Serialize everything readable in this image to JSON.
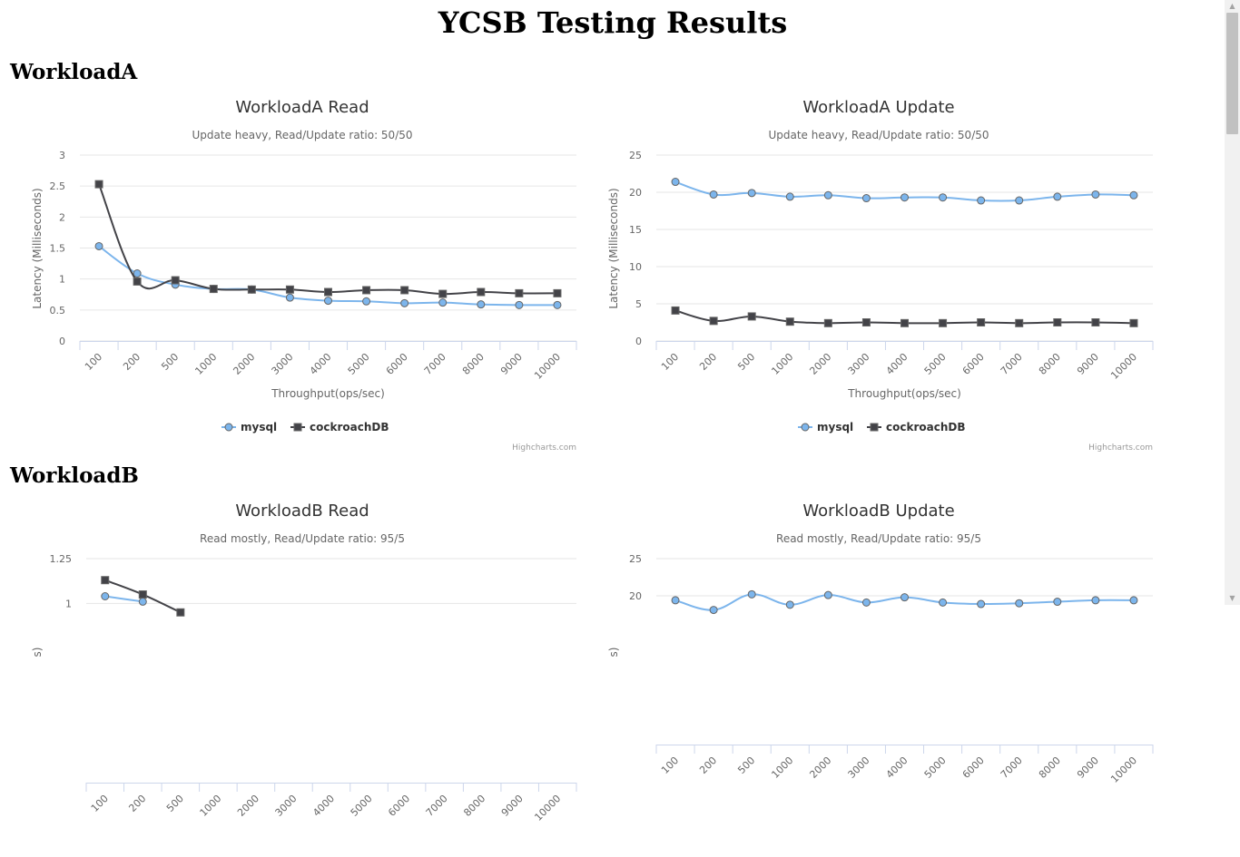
{
  "page": {
    "title": "YCSB Testing Results"
  },
  "sections": [
    {
      "heading": "WorkloadA"
    },
    {
      "heading": "WorkloadB"
    }
  ],
  "colors": {
    "mysql": "#7cb5ec",
    "cockroachDB": "#434348",
    "grid": "#e6e6e6",
    "axis_line": "#ccd6eb",
    "text": "#666666",
    "title": "#333333"
  },
  "chart_data": [
    {
      "type": "line",
      "title": "WorkloadA Read",
      "subtitle": "Update heavy, Read/Update ratio: 50/50",
      "xlabel": "Throughput(ops/sec)",
      "ylabel": "Latency (Milliseconds)",
      "categories": [
        "100",
        "200",
        "500",
        "1000",
        "2000",
        "3000",
        "4000",
        "5000",
        "6000",
        "7000",
        "8000",
        "9000",
        "10000"
      ],
      "yticks": [
        "0",
        "0.5",
        "1",
        "1.5",
        "2",
        "2.5",
        "3"
      ],
      "ylim": [
        0,
        3
      ],
      "grid": true,
      "legend_position": "bottom-center",
      "credits": "Highcharts.com",
      "series": [
        {
          "name": "mysql",
          "marker": "circle",
          "values": [
            1.53,
            1.09,
            0.91,
            0.84,
            0.83,
            0.7,
            0.65,
            0.64,
            0.61,
            0.62,
            0.59,
            0.58,
            0.58
          ]
        },
        {
          "name": "cockroachDB",
          "marker": "square",
          "values": [
            2.53,
            0.96,
            0.98,
            0.84,
            0.83,
            0.83,
            0.79,
            0.82,
            0.82,
            0.76,
            0.79,
            0.77,
            0.77
          ]
        }
      ]
    },
    {
      "type": "line",
      "title": "WorkloadA Update",
      "subtitle": "Update heavy, Read/Update ratio: 50/50",
      "xlabel": "Throughput(ops/sec)",
      "ylabel": "Latency (Milliseconds)",
      "categories": [
        "100",
        "200",
        "500",
        "1000",
        "2000",
        "3000",
        "4000",
        "5000",
        "6000",
        "7000",
        "8000",
        "9000",
        "10000"
      ],
      "yticks": [
        "0",
        "5",
        "10",
        "15",
        "20",
        "25"
      ],
      "ylim": [
        0,
        25
      ],
      "grid": true,
      "legend_position": "bottom-center",
      "credits": "Highcharts.com",
      "series": [
        {
          "name": "mysql",
          "marker": "circle",
          "values": [
            21.4,
            19.7,
            19.9,
            19.4,
            19.6,
            19.2,
            19.3,
            19.3,
            18.9,
            18.9,
            19.4,
            19.7,
            19.6
          ]
        },
        {
          "name": "cockroachDB",
          "marker": "square",
          "values": [
            4.1,
            2.7,
            3.3,
            2.6,
            2.4,
            2.5,
            2.4,
            2.4,
            2.5,
            2.4,
            2.5,
            2.5,
            2.4
          ]
        }
      ]
    },
    {
      "type": "line",
      "title": "WorkloadB Read",
      "subtitle": "Read mostly, Read/Update ratio: 95/5",
      "xlabel": "",
      "ylabel": "s)",
      "categories": [
        "100",
        "200",
        "500",
        "1000",
        "2000",
        "3000",
        "4000",
        "5000",
        "6000",
        "7000",
        "8000",
        "9000",
        "10000"
      ],
      "yticks": [
        "1",
        "1.25"
      ],
      "ylim": [
        0,
        1.25
      ],
      "grid": true,
      "series": [
        {
          "name": "mysql",
          "marker": "circle",
          "values": [
            1.04,
            1.01,
            null,
            null,
            null,
            null,
            null,
            null,
            null,
            null,
            null,
            null,
            null
          ]
        },
        {
          "name": "cockroachDB",
          "marker": "square",
          "values": [
            1.13,
            1.05,
            0.95,
            null,
            null,
            null,
            null,
            null,
            null,
            null,
            null,
            null,
            null
          ]
        }
      ]
    },
    {
      "type": "line",
      "title": "WorkloadB Update",
      "subtitle": "Read mostly, Read/Update ratio: 95/5",
      "xlabel": "",
      "ylabel": "s)",
      "categories": [
        "100",
        "200",
        "500",
        "1000",
        "2000",
        "3000",
        "4000",
        "5000",
        "6000",
        "7000",
        "8000",
        "9000",
        "10000"
      ],
      "yticks": [
        "20",
        "25"
      ],
      "ylim": [
        0,
        25
      ],
      "grid": true,
      "series": [
        {
          "name": "mysql",
          "marker": "circle",
          "values": [
            19.4,
            18.1,
            20.2,
            18.8,
            20.1,
            19.1,
            19.8,
            19.1,
            18.9,
            19.0,
            19.2,
            19.4,
            19.4
          ]
        },
        {
          "name": "cockroachDB",
          "marker": "square",
          "values": [
            null,
            null,
            null,
            null,
            null,
            null,
            null,
            null,
            null,
            null,
            null,
            null,
            null
          ]
        }
      ]
    }
  ]
}
